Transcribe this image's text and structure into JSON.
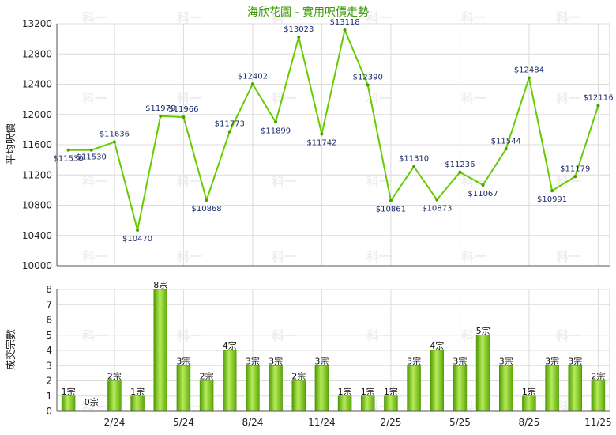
{
  "chart_data": [
    {
      "type": "line",
      "title": "海欣花園 - 實用呎價走勢",
      "ylabel": "平均呎價",
      "ylim": [
        10000,
        13200
      ],
      "yticks": [
        10000,
        10400,
        10800,
        11200,
        11600,
        12000,
        12400,
        12800,
        13200
      ],
      "series": [
        {
          "values": [
            11530,
            11530,
            11636,
            10470,
            11979,
            11966,
            10868,
            11773,
            12402,
            11899,
            13023,
            11742,
            13118,
            12390,
            10861,
            11310,
            10873,
            11236,
            11067,
            11544,
            12484,
            10991,
            11179,
            12116
          ],
          "labels": [
            "$11530",
            "$11530",
            "$11636",
            "$10470",
            "$11979",
            "$11966",
            "$10868",
            "$11773",
            "$12402",
            "$11899",
            "$13023",
            "$11742",
            "$13118",
            "$12390",
            "$10861",
            "$11310",
            "$10873",
            "$11236",
            "$11067",
            "$11544",
            "$12484",
            "$10991",
            "$11179",
            "$12116"
          ]
        }
      ],
      "grid": true,
      "line_color": "#66cc00"
    },
    {
      "type": "bar",
      "ylabel": "成交宗數",
      "ylim": [
        0,
        8
      ],
      "yticks": [
        0,
        1,
        2,
        3,
        4,
        5,
        6,
        7,
        8
      ],
      "values": [
        1,
        0,
        2,
        1,
        8,
        3,
        2,
        4,
        3,
        3,
        2,
        3,
        1,
        1,
        1,
        3,
        4,
        3,
        5,
        3,
        1,
        3,
        3,
        2
      ],
      "labels": [
        "1宗",
        "0宗",
        "2宗",
        "1宗",
        "8宗",
        "3宗",
        "2宗",
        "4宗",
        "3宗",
        "3宗",
        "2宗",
        "3宗",
        "1宗",
        "1宗",
        "1宗",
        "3宗",
        "4宗",
        "3宗",
        "5宗",
        "3宗",
        "1宗",
        "3宗",
        "3宗",
        "2宗"
      ],
      "bar_color": "#77c81a",
      "grid": true
    }
  ],
  "x_ticks": [
    {
      "index": 2,
      "label": "2/24"
    },
    {
      "index": 5,
      "label": "5/24"
    },
    {
      "index": 8,
      "label": "8/24"
    },
    {
      "index": 11,
      "label": "11/24"
    },
    {
      "index": 14,
      "label": "2/25"
    },
    {
      "index": 17,
      "label": "5/25"
    },
    {
      "index": 20,
      "label": "8/25"
    },
    {
      "index": 23,
      "label": "11/25"
    }
  ],
  "watermark": "科一"
}
